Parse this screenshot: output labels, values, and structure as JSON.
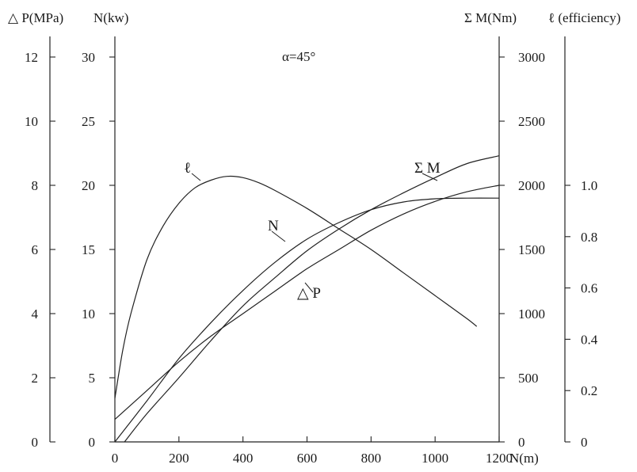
{
  "chart_data": {
    "type": "line",
    "annotation": "α=45°",
    "x_axis": {
      "label": "N(m)",
      "range": [
        0,
        1200
      ],
      "ticks": [
        "0",
        "200",
        "400",
        "600",
        "800",
        "1000",
        "1200"
      ]
    },
    "y_axes": [
      {
        "id": "dp",
        "label": "△ P(MPa)",
        "range": [
          0,
          12
        ],
        "ticks": [
          "0",
          "2",
          "4",
          "6",
          "8",
          "10",
          "12"
        ]
      },
      {
        "id": "n",
        "label": "N(kw)",
        "range": [
          0,
          30
        ],
        "ticks": [
          "0",
          "5",
          "10",
          "15",
          "20",
          "25",
          "30"
        ]
      },
      {
        "id": "m",
        "label": "Σ M(Nm)",
        "range": [
          0,
          3000
        ],
        "ticks": [
          "0",
          "500",
          "1000",
          "1500",
          "2000",
          "2500",
          "3000"
        ]
      },
      {
        "id": "eff",
        "label": "ℓ (efficiency)",
        "range": [
          0,
          1.5
        ],
        "ticks": [
          "0",
          "0.2",
          "0.4",
          "0.6",
          "0.8",
          "1.0"
        ]
      }
    ],
    "series": [
      {
        "name": "ℓ",
        "axis": "eff",
        "x": [
          0,
          25,
          50,
          100,
          150,
          200,
          250,
          300,
          350,
          400,
          450,
          500,
          600,
          700,
          800,
          900,
          1000,
          1100,
          1130
        ],
        "y": [
          0.17,
          0.36,
          0.5,
          0.71,
          0.84,
          0.93,
          0.99,
          1.02,
          1.035,
          1.03,
          1.01,
          0.98,
          0.91,
          0.83,
          0.75,
          0.66,
          0.57,
          0.48,
          0.45
        ]
      },
      {
        "name": "N",
        "axis": "n",
        "x": [
          0,
          100,
          200,
          300,
          400,
          500,
          600,
          700,
          800,
          900,
          1000,
          1100,
          1200
        ],
        "y": [
          0,
          3.2,
          6.5,
          9.3,
          11.8,
          14,
          15.8,
          17.1,
          18.1,
          18.7,
          18.95,
          19,
          19
        ]
      },
      {
        "name": "Σ M",
        "axis": "m",
        "x": [
          30,
          100,
          200,
          300,
          400,
          500,
          600,
          700,
          800,
          900,
          1000,
          1100,
          1200
        ],
        "y": [
          0,
          220,
          500,
          790,
          1060,
          1280,
          1490,
          1660,
          1810,
          1940,
          2060,
          2170,
          2230
        ]
      },
      {
        "name": "△ P",
        "axis": "dp",
        "x": [
          0,
          100,
          200,
          300,
          400,
          500,
          600,
          700,
          800,
          900,
          1000,
          1100,
          1200
        ],
        "y": [
          0.7,
          1.6,
          2.5,
          3.3,
          4.0,
          4.7,
          5.4,
          6.0,
          6.6,
          7.1,
          7.5,
          7.8,
          8.0
        ]
      }
    ]
  }
}
